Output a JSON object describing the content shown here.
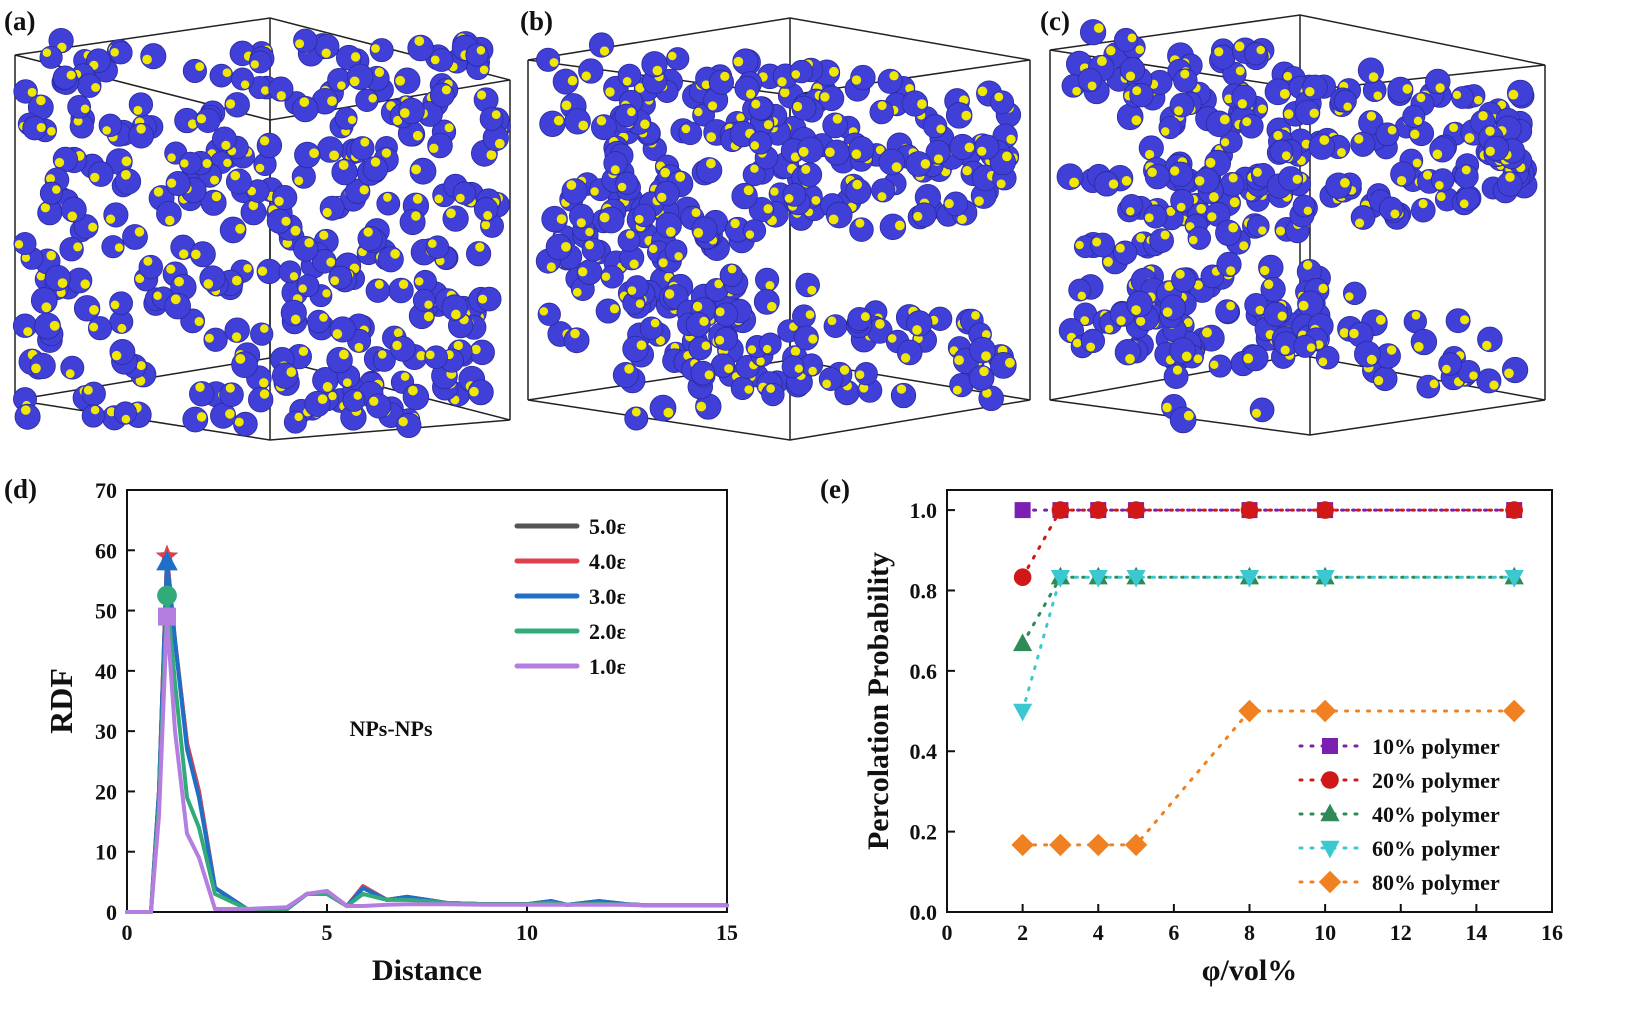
{
  "panels": {
    "a": {
      "label": "(a)"
    },
    "b": {
      "label": "(b)"
    },
    "c": {
      "label": "(c)"
    },
    "d": {
      "label": "(d)"
    },
    "e": {
      "label": "(e)"
    }
  },
  "colors": {
    "particle": "#4040d8",
    "patch": "#f0e800",
    "box_line": "#222222"
  },
  "chart_data": [
    {
      "type": "line",
      "panel": "(d)",
      "xlabel": "Distance",
      "ylabel": "RDF",
      "annotation": "NPs-NPs",
      "xlim": [
        0,
        15
      ],
      "ylim": [
        0,
        70
      ],
      "xticks": [
        "0",
        "5",
        "10",
        "15"
      ],
      "yticks": [
        "0",
        "10",
        "20",
        "30",
        "40",
        "50",
        "60",
        "70"
      ],
      "legend_position": "top-right",
      "x": [
        0,
        0.6,
        0.8,
        1.0,
        1.2,
        1.5,
        1.8,
        2.2,
        3,
        4,
        4.5,
        5,
        5.5,
        5.9,
        6.5,
        7,
        7.5,
        8,
        9,
        10,
        10.6,
        11,
        11.8,
        12.5,
        13,
        14,
        15
      ],
      "series": [
        {
          "name": "5.0ε",
          "color": "#555555",
          "marker": "star",
          "values": [
            0,
            0,
            20,
            59,
            45,
            28,
            20,
            4,
            0.5,
            0.5,
            3,
            3,
            1,
            4,
            2,
            2.5,
            2,
            1.5,
            1.3,
            1.3,
            1.8,
            1.2,
            1.8,
            1.3,
            1.1,
            1.1,
            1.1
          ]
        },
        {
          "name": "4.0ε",
          "color": "#e0404a",
          "marker": "star",
          "values": [
            0,
            0,
            20,
            59,
            45,
            28,
            20,
            4,
            0.5,
            0.5,
            3,
            3,
            1,
            4.3,
            2,
            2.5,
            2,
            1.5,
            1.3,
            1.3,
            1.8,
            1.2,
            1.8,
            1.3,
            1.1,
            1.1,
            1.1
          ]
        },
        {
          "name": "3.0ε",
          "color": "#1f6fc8",
          "marker": "triangle",
          "values": [
            0,
            0,
            20,
            58,
            45,
            27,
            19,
            4,
            0.5,
            0.5,
            3,
            3.2,
            1,
            4,
            2,
            2.5,
            2,
            1.5,
            1.3,
            1.3,
            1.8,
            1.2,
            1.8,
            1.3,
            1.1,
            1.1,
            1.1
          ]
        },
        {
          "name": "2.0ε",
          "color": "#33aa7a",
          "marker": "circle",
          "values": [
            0,
            0,
            18,
            52.5,
            38,
            19,
            14,
            3,
            0.5,
            0.5,
            3,
            3,
            1,
            3,
            2,
            2,
            1.8,
            1.5,
            1.3,
            1.3,
            1.5,
            1.2,
            1.4,
            1.2,
            1.1,
            1.1,
            1.1
          ]
        },
        {
          "name": "1.0ε",
          "color": "#b47ee0",
          "marker": "square",
          "values": [
            0,
            0,
            16,
            49,
            30,
            13,
            9,
            0.5,
            0.5,
            0.8,
            3,
            3.5,
            1,
            1,
            1.2,
            1.3,
            1.3,
            1.3,
            1.2,
            1.2,
            1.2,
            1.2,
            1.2,
            1.2,
            1.1,
            1.1,
            1.1
          ]
        }
      ]
    },
    {
      "type": "line",
      "panel": "(e)",
      "xlabel": "φ/vol%",
      "ylabel": "Percolation Probability",
      "xlim": [
        0,
        16
      ],
      "ylim": [
        0,
        1.05
      ],
      "xticks": [
        "0",
        "2",
        "4",
        "6",
        "8",
        "10",
        "12",
        "14",
        "16"
      ],
      "yticks": [
        "0.0",
        "0.2",
        "0.4",
        "0.6",
        "0.8",
        "1.0"
      ],
      "legend_position": "bottom-right",
      "x": [
        2,
        3,
        4,
        5,
        8,
        10,
        15
      ],
      "series": [
        {
          "name": "10% polymer",
          "color": "#7a1fb0",
          "marker": "square",
          "values": [
            1.0,
            1.0,
            1.0,
            1.0,
            1.0,
            1.0,
            1.0
          ]
        },
        {
          "name": "20% polymer",
          "color": "#d01818",
          "marker": "circle",
          "values": [
            0.833,
            1.0,
            1.0,
            1.0,
            1.0,
            1.0,
            1.0
          ]
        },
        {
          "name": "40% polymer",
          "color": "#2e8b57",
          "marker": "triangle",
          "values": [
            0.667,
            0.833,
            0.833,
            0.833,
            0.833,
            0.833,
            0.833
          ]
        },
        {
          "name": "60% polymer",
          "color": "#3cc8d0",
          "marker": "triangle-down",
          "values": [
            0.5,
            0.833,
            0.833,
            0.833,
            0.833,
            0.833,
            0.833
          ]
        },
        {
          "name": "80% polymer",
          "color": "#f08020",
          "marker": "diamond",
          "values": [
            0.167,
            0.167,
            0.167,
            0.167,
            0.5,
            0.5,
            0.5
          ]
        }
      ]
    }
  ]
}
